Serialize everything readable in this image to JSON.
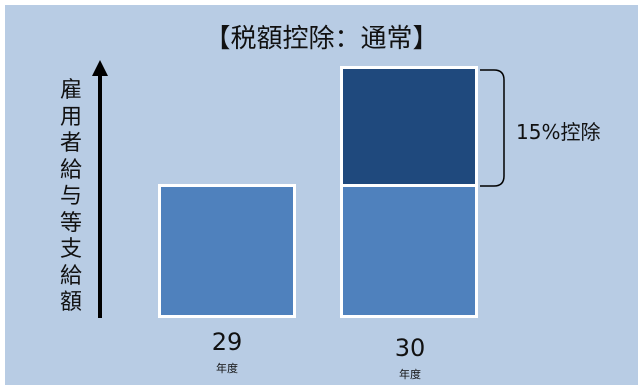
{
  "title": "【税額控除：通常】",
  "axis_label": "雇用者給与等支給額",
  "annotation": "15%控除",
  "columns": [
    {
      "year": "29",
      "unit": "年度"
    },
    {
      "year": "30",
      "unit": "年度"
    }
  ],
  "colors": {
    "background": "#b8cce4",
    "base_bar": "#4f81bd",
    "increase_bar": "#1f497d",
    "border": "#ffffff"
  }
}
